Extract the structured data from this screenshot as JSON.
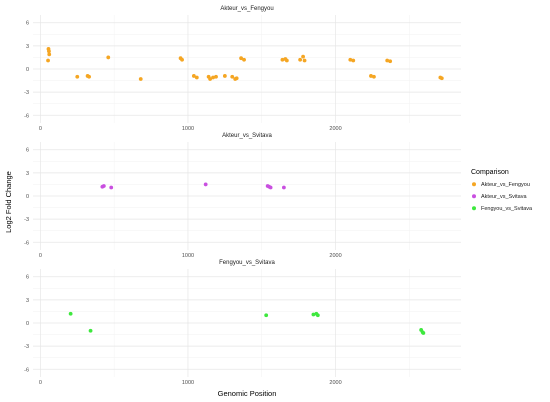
{
  "chart_data": {
    "type": "scatter",
    "xlabel": "Genomic Position",
    "ylabel": "Log2 Fold Change",
    "xlim": [
      -50,
      2850
    ],
    "ylim": [
      -7,
      7
    ],
    "x_ticks": [
      0,
      1000,
      2000
    ],
    "x_tick_labels": [
      "0",
      "1000",
      "2000"
    ],
    "y_ticks": [
      -6,
      -3,
      0,
      3,
      6
    ],
    "y_tick_labels": [
      "-6",
      "-3",
      "0",
      "3",
      "6"
    ],
    "grid": true,
    "legend": {
      "title": "Comparison",
      "placement": "right",
      "entries": [
        {
          "label": "Akteur_vs_Fengyou",
          "color": "#F5A623"
        },
        {
          "label": "Akteur_vs_Svitava",
          "color": "#C94FE0"
        },
        {
          "label": "Fengyou_vs_Svitava",
          "color": "#3EE83E"
        }
      ]
    },
    "facets": [
      {
        "title": "Akteur_vs_Fengyou",
        "color": "#F5A623",
        "points": [
          [
            55,
            2.6
          ],
          [
            58,
            2.3
          ],
          [
            60,
            1.9
          ],
          [
            52,
            1.1
          ],
          [
            250,
            -1.0
          ],
          [
            320,
            -0.9
          ],
          [
            330,
            -1.0
          ],
          [
            460,
            1.5
          ],
          [
            680,
            -1.3
          ],
          [
            950,
            1.4
          ],
          [
            960,
            1.2
          ],
          [
            1040,
            -0.9
          ],
          [
            1060,
            -1.1
          ],
          [
            1140,
            -1.0
          ],
          [
            1150,
            -1.3
          ],
          [
            1170,
            -1.1
          ],
          [
            1190,
            -1.0
          ],
          [
            1250,
            -0.9
          ],
          [
            1300,
            -1.0
          ],
          [
            1320,
            -1.3
          ],
          [
            1330,
            -1.2
          ],
          [
            1360,
            1.4
          ],
          [
            1380,
            1.2
          ],
          [
            1640,
            1.2
          ],
          [
            1660,
            1.3
          ],
          [
            1670,
            1.1
          ],
          [
            1760,
            1.2
          ],
          [
            1780,
            1.6
          ],
          [
            1790,
            1.1
          ],
          [
            2100,
            1.2
          ],
          [
            2120,
            1.1
          ],
          [
            2240,
            -0.9
          ],
          [
            2260,
            -1.0
          ],
          [
            2350,
            1.1
          ],
          [
            2370,
            1.0
          ],
          [
            2710,
            -1.1
          ],
          [
            2720,
            -1.2
          ]
        ]
      },
      {
        "title": "Akteur_vs_Svitava",
        "color": "#C94FE0",
        "points": [
          [
            420,
            1.2
          ],
          [
            430,
            1.3
          ],
          [
            480,
            1.1
          ],
          [
            1120,
            1.5
          ],
          [
            1540,
            1.3
          ],
          [
            1550,
            1.2
          ],
          [
            1560,
            1.1
          ],
          [
            1650,
            1.1
          ]
        ]
      },
      {
        "title": "Fengyou_vs_Svitava",
        "color": "#3EE83E",
        "points": [
          [
            205,
            1.2
          ],
          [
            340,
            -1.0
          ],
          [
            1530,
            1.0
          ],
          [
            1850,
            1.1
          ],
          [
            1870,
            1.2
          ],
          [
            1880,
            1.0
          ],
          [
            2580,
            -0.9
          ],
          [
            2590,
            -1.2
          ],
          [
            2595,
            -1.3
          ]
        ]
      }
    ]
  }
}
